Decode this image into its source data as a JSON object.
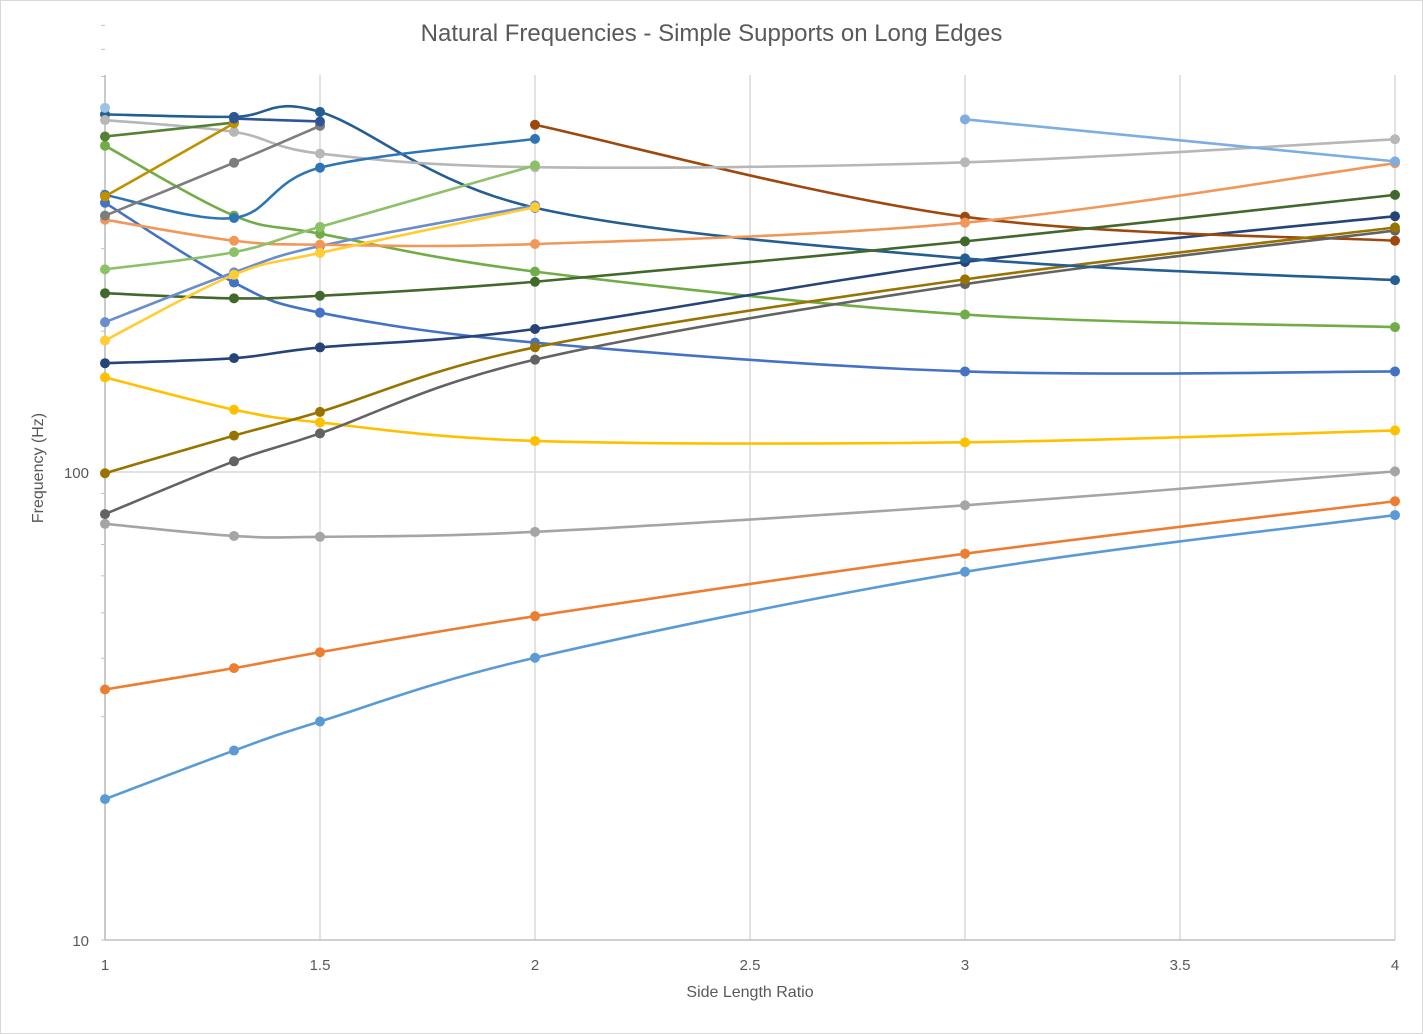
{
  "chart_data": {
    "type": "line",
    "title": "Natural Frequencies - Simple Supports on Long Edges",
    "xlabel": "Side Length Ratio",
    "ylabel": "Frequency (Hz)",
    "x_scale": "linear",
    "y_scale": "log",
    "xlim": [
      1,
      4
    ],
    "ylim": [
      10,
      900
    ],
    "x_ticks": [
      "1",
      "1.5",
      "2",
      "2.5",
      "3",
      "3.5",
      "4"
    ],
    "y_ticks": [
      "10",
      "100"
    ],
    "grid": "vertical major + horizontal at 100",
    "legend": "none",
    "series": [
      {
        "color": "#5b9bd5",
        "points": [
          [
            1,
            20
          ],
          [
            1.3,
            25.4
          ],
          [
            1.5,
            29.3
          ],
          [
            2,
            40.1
          ],
          [
            3,
            61.2
          ],
          [
            4,
            80.9
          ]
        ]
      },
      {
        "color": "#ed7d31",
        "points": [
          [
            1,
            34.3
          ],
          [
            1.3,
            38.1
          ],
          [
            1.5,
            41.2
          ],
          [
            2,
            49.2
          ],
          [
            3,
            66.9
          ],
          [
            4,
            86.6
          ]
        ]
      },
      {
        "color": "#a5a5a5",
        "points": [
          [
            1,
            77.5
          ],
          [
            1.3,
            73.0
          ],
          [
            1.5,
            72.7
          ],
          [
            2,
            74.5
          ],
          [
            3,
            84.9
          ],
          [
            4,
            100.3
          ]
        ]
      },
      {
        "color": "#ffc000",
        "points": [
          [
            1,
            159.3
          ],
          [
            1.3,
            135.9
          ],
          [
            1.5,
            127.6
          ],
          [
            2,
            116.5
          ],
          [
            3,
            115.7
          ],
          [
            4,
            122.7
          ]
        ]
      },
      {
        "color": "#4472c4",
        "points": [
          [
            1,
            376
          ],
          [
            1.3,
            254
          ],
          [
            1.5,
            219
          ],
          [
            2,
            189
          ],
          [
            3,
            164
          ],
          [
            4,
            164
          ]
        ]
      },
      {
        "color": "#70ad47",
        "points": [
          [
            1,
            498
          ],
          [
            1.3,
            353
          ],
          [
            1.5,
            323
          ],
          [
            2,
            268
          ],
          [
            3,
            217
          ],
          [
            4,
            204
          ]
        ]
      },
      {
        "color": "#264478",
        "points": [
          [
            1,
            170.8
          ],
          [
            1.3,
            175.1
          ],
          [
            1.5,
            184.6
          ],
          [
            2,
            202.1
          ],
          [
            3,
            281
          ],
          [
            4,
            352
          ]
        ]
      },
      {
        "color": "#9e480e",
        "points": [
          [
            2,
            552
          ],
          [
            3,
            351
          ],
          [
            4,
            312
          ]
        ]
      },
      {
        "color": "#636363",
        "points": [
          [
            1,
            81.3
          ],
          [
            1.3,
            105.4
          ],
          [
            1.5,
            120.9
          ],
          [
            2,
            173.8
          ],
          [
            3,
            252
          ],
          [
            4,
            328
          ]
        ]
      },
      {
        "color": "#997300",
        "points": [
          [
            1,
            99.4
          ],
          [
            1.3,
            119.6
          ],
          [
            1.5,
            134.4
          ],
          [
            2,
            184.7
          ],
          [
            3,
            258
          ],
          [
            4,
            333
          ]
        ]
      },
      {
        "color": "#255e91",
        "points": [
          [
            1,
            581
          ],
          [
            1.3,
            574
          ],
          [
            1.5,
            588
          ],
          [
            2,
            367
          ],
          [
            3,
            286
          ],
          [
            4,
            257
          ]
        ]
      },
      {
        "color": "#43682b",
        "points": [
          [
            1,
            241
          ],
          [
            1.3,
            235
          ],
          [
            1.5,
            238
          ],
          [
            2,
            255
          ],
          [
            3,
            311
          ],
          [
            4,
            391
          ]
        ]
      },
      {
        "color": "#698ed0",
        "points": [
          [
            1,
            209
          ],
          [
            1.3,
            267
          ],
          [
            1.5,
            304
          ],
          [
            2,
            371
          ]
        ]
      },
      {
        "color": "#f1975a",
        "points": [
          [
            1,
            346
          ],
          [
            1.3,
            312
          ],
          [
            1.5,
            306
          ],
          [
            2,
            307
          ],
          [
            3,
            341
          ],
          [
            4,
            457
          ]
        ]
      },
      {
        "color": "#b7b7b7",
        "points": [
          [
            1,
            565
          ],
          [
            1.3,
            533
          ],
          [
            1.5,
            479
          ],
          [
            2,
            448
          ],
          [
            3,
            459
          ],
          [
            4,
            514
          ]
        ]
      },
      {
        "color": "#ffcd33",
        "points": [
          [
            1,
            191
          ],
          [
            1.3,
            264
          ],
          [
            1.5,
            294
          ],
          [
            2,
            368
          ]
        ]
      },
      {
        "color": "#8cc168",
        "points": [
          [
            1,
            271
          ],
          [
            1.3,
            295
          ],
          [
            1.5,
            334
          ],
          [
            2,
            452
          ]
        ]
      },
      {
        "color": "#2e75b6",
        "points": [
          [
            1,
            391
          ],
          [
            1.3,
            349
          ],
          [
            1.5,
            447
          ],
          [
            2,
            515
          ]
        ]
      },
      {
        "color": "#7d7d7d",
        "points": [
          [
            1,
            353
          ],
          [
            1.3,
            458
          ],
          [
            1.5,
            549
          ]
        ]
      },
      {
        "color": "#548235",
        "points": [
          [
            1,
            521
          ],
          [
            1.3,
            558
          ]
        ]
      },
      {
        "color": "#bf9000",
        "points": [
          [
            1,
            388
          ],
          [
            1.3,
            556
          ]
        ]
      },
      {
        "color": "#2f5597",
        "points": [
          [
            1.3,
            569
          ],
          [
            1.5,
            561
          ]
        ]
      },
      {
        "color": "#9dc3e6",
        "points": [
          [
            1,
            600
          ]
        ]
      },
      {
        "color": "#7eaee0",
        "points": [
          [
            3,
            567
          ],
          [
            4,
            461
          ]
        ]
      }
    ]
  }
}
